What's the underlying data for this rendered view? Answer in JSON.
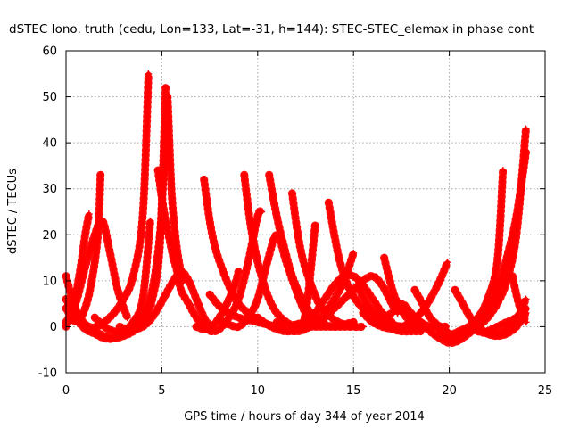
{
  "chart_data": {
    "type": "line",
    "title": "dSTEC Iono. truth (cedu, Lon=133, Lat=-31, h=144): STEC-STEC_elemax in phase cont",
    "xlabel": "GPS time / hours of day 344 of year 2014",
    "ylabel": "dSTEC  / TECUs",
    "xlim": [
      0,
      25
    ],
    "ylim": [
      -10,
      60
    ],
    "xticks": [
      0,
      5,
      10,
      15,
      20,
      25
    ],
    "yticks": [
      -10,
      0,
      10,
      20,
      30,
      40,
      50,
      60
    ],
    "grid": true,
    "legend": "none",
    "colors": {
      "series": "#ff0000"
    },
    "marker": "plus",
    "series": [
      {
        "x": [
          0.0,
          0.2,
          0.4,
          0.6,
          0.8,
          1.0,
          1.2
        ],
        "y": [
          0,
          2,
          5,
          9,
          14,
          20,
          24.5
        ]
      },
      {
        "x": [
          0.0,
          0.3,
          0.6,
          0.9,
          1.2,
          1.5,
          1.7,
          1.8
        ],
        "y": [
          4,
          2,
          1,
          3,
          7,
          14,
          22,
          33
        ]
      },
      {
        "x": [
          0.0,
          0.4,
          0.8,
          1.2,
          1.6,
          2.0,
          2.5,
          3.0,
          3.5,
          4.0,
          4.3
        ],
        "y": [
          11,
          5,
          1.5,
          0,
          0,
          1,
          3,
          6,
          11,
          24,
          55
        ]
      },
      {
        "x": [
          0.0,
          0.5,
          1.0,
          1.5,
          1.9,
          2.3,
          2.7,
          3.2
        ],
        "y": [
          1,
          5,
          13,
          20,
          23,
          16,
          8,
          2
        ]
      },
      {
        "x": [
          0.0,
          0.5,
          1.0,
          1.5,
          2.0,
          2.5,
          3.0,
          3.5,
          4.0,
          4.4
        ],
        "y": [
          6,
          2,
          -0.5,
          -1.5,
          -2.5,
          -2.5,
          -1,
          1,
          6,
          23
        ]
      },
      {
        "x": [
          0.5,
          1.0,
          1.5,
          2.0,
          2.5,
          3.0,
          3.5,
          4.0,
          4.5,
          4.9,
          5.2
        ],
        "y": [
          3,
          0,
          -1,
          -2,
          -2.5,
          -2,
          -1,
          1,
          6,
          18,
          52
        ]
      },
      {
        "x": [
          1.5,
          2.0,
          2.5,
          3.0,
          3.5,
          4.0,
          4.5,
          4.9,
          5.1,
          5.3
        ],
        "y": [
          2,
          0,
          -1,
          -1,
          0,
          2,
          8,
          20,
          34,
          45
        ]
      },
      {
        "x": [
          4.8,
          5.0,
          5.2,
          5.4,
          5.6,
          5.8,
          6.0,
          6.4,
          6.8,
          7.2,
          7.6,
          8.0,
          8.5,
          9.0,
          9.5,
          10.0,
          10.2
        ],
        "y": [
          34,
          28,
          23,
          19,
          15,
          12,
          8,
          5,
          2,
          0,
          -1,
          -0.5,
          2,
          6,
          14,
          24,
          25
        ]
      },
      {
        "x": [
          2.8,
          3.2,
          3.6,
          4.0,
          4.4,
          4.8,
          5.2,
          5.6,
          6.0,
          6.4,
          6.8,
          7.2,
          7.6
        ],
        "y": [
          0,
          -0.5,
          -0.5,
          0,
          1.5,
          4,
          7,
          10,
          12,
          10,
          6,
          2,
          -0.5
        ]
      },
      {
        "x": [
          5.3,
          5.5,
          5.7,
          5.9,
          6.1
        ],
        "y": [
          50,
          30,
          20,
          14,
          10
        ]
      },
      {
        "x": [
          7.2,
          7.5,
          7.8,
          8.2,
          8.6,
          9.0,
          9.5,
          10.0,
          10.5,
          11.0,
          11.5,
          12.0,
          12.5
        ],
        "y": [
          32,
          23,
          17,
          12,
          8,
          5,
          3,
          1.5,
          0.5,
          0,
          0,
          0.5,
          1
        ]
      },
      {
        "x": [
          9.3,
          9.6,
          9.9,
          10.2,
          10.6,
          11.0,
          11.5,
          12.0,
          12.5,
          13.0
        ],
        "y": [
          33,
          23,
          16,
          11,
          6,
          3,
          1,
          0,
          0.5,
          2
        ]
      },
      {
        "x": [
          6.8,
          7.2,
          7.6,
          8.0,
          8.4,
          8.8,
          9.0
        ],
        "y": [
          0,
          -0.5,
          0,
          2,
          5,
          9,
          12
        ]
      },
      {
        "x": [
          7.5,
          8.0,
          8.5,
          9.0,
          9.5,
          10.0,
          10.5,
          11.0,
          11.5,
          12.0,
          12.5,
          13.0,
          13.5,
          14.0,
          14.5,
          15.0
        ],
        "y": [
          7,
          4.5,
          3,
          2,
          1.5,
          1,
          0.5,
          0,
          0,
          0,
          0,
          0,
          0,
          0,
          0,
          0
        ]
      },
      {
        "x": [
          8.0,
          8.5,
          9.0,
          9.5,
          10.0,
          10.5,
          11.0,
          11.5,
          12.0,
          12.5,
          13.0
        ],
        "y": [
          1.5,
          0.5,
          0,
          2,
          6,
          14,
          20,
          14,
          8,
          3,
          1
        ]
      },
      {
        "x": [
          10.6,
          11.0,
          11.4,
          11.8,
          12.2,
          12.6,
          13.0,
          13.5,
          14.0,
          14.5,
          15.0
        ],
        "y": [
          33,
          24,
          17,
          11,
          7,
          4,
          2,
          0.5,
          0,
          0.5,
          1
        ]
      },
      {
        "x": [
          11.8,
          12.1,
          12.4,
          12.8,
          13.2,
          13.6,
          14.0,
          14.5,
          15.0,
          15.5
        ],
        "y": [
          29,
          20,
          14,
          9,
          5,
          3,
          1.5,
          0.5,
          0,
          0
        ]
      },
      {
        "x": [
          10.0,
          10.5,
          11.0,
          11.5,
          12.0,
          12.5,
          13.0
        ],
        "y": [
          2,
          0.5,
          -0.5,
          -1,
          -0.5,
          3,
          22
        ]
      },
      {
        "x": [
          11.0,
          11.5,
          12.0,
          12.5,
          13.0,
          13.5,
          14.0,
          14.5,
          15.0
        ],
        "y": [
          1,
          -0.5,
          -1,
          -0.5,
          1,
          3,
          6,
          10,
          16
        ]
      },
      {
        "x": [
          12.0,
          12.5,
          13.0,
          13.5,
          14.0,
          14.5,
          15.0,
          15.5,
          16.0,
          16.5,
          17.0
        ],
        "y": [
          0,
          1,
          3,
          6,
          9,
          11,
          11,
          9,
          6,
          3,
          1
        ]
      },
      {
        "x": [
          13.0,
          13.5,
          14.0,
          14.5,
          15.0,
          15.5,
          16.0,
          16.5,
          17.0,
          17.3
        ],
        "y": [
          1,
          2,
          4,
          6,
          8,
          10,
          11,
          9,
          5,
          3
        ]
      },
      {
        "x": [
          13.7,
          14.0,
          14.3,
          14.7,
          15.1,
          15.5,
          16.0,
          16.5,
          17.0,
          17.5,
          18.0,
          18.5
        ],
        "y": [
          27,
          20,
          14,
          9,
          6,
          4,
          2,
          1,
          0.5,
          0,
          0,
          0
        ]
      },
      {
        "x": [
          15.3,
          15.7,
          16.1,
          16.5,
          16.9,
          17.3,
          17.7
        ],
        "y": [
          8,
          5,
          3,
          1.5,
          0.5,
          0,
          0
        ]
      },
      {
        "x": [
          16.6,
          16.9,
          17.2,
          17.6,
          18.0,
          18.5,
          19.0
        ],
        "y": [
          15,
          10,
          6,
          3,
          1,
          0,
          0
        ]
      },
      {
        "x": [
          15.5,
          16.0,
          16.5,
          17.0,
          17.5,
          18.0,
          18.5
        ],
        "y": [
          3,
          1,
          0,
          -0.5,
          -1,
          -1,
          -1
        ]
      },
      {
        "x": [
          16.0,
          16.5,
          17.0,
          17.5,
          18.0,
          18.5,
          19.0,
          19.5,
          19.8
        ],
        "y": [
          1,
          2,
          3,
          5,
          3,
          1,
          0,
          0,
          0
        ]
      },
      {
        "x": [
          17.0,
          17.5,
          18.0,
          18.5,
          19.0,
          19.5,
          19.9
        ],
        "y": [
          0,
          0,
          1,
          3,
          6,
          10,
          14
        ]
      },
      {
        "x": [
          18.2,
          18.6,
          19.0,
          19.5,
          20.0,
          20.5
        ],
        "y": [
          8,
          5,
          2,
          0,
          -1.5,
          -2
        ]
      },
      {
        "x": [
          18.5,
          19.0,
          19.5,
          20.0,
          20.5,
          21.0,
          21.5,
          22.0,
          22.5,
          23.0,
          23.5,
          24.0
        ],
        "y": [
          1,
          -1,
          -2.5,
          -3.5,
          -3,
          -1.5,
          0,
          2,
          5,
          10,
          20,
          43
        ]
      },
      {
        "x": [
          19.5,
          20.0,
          20.5,
          21.0,
          21.5,
          22.0,
          22.5,
          23.0,
          23.5,
          24.0
        ],
        "y": [
          -1,
          -2,
          -2,
          -1,
          1,
          4,
          8,
          15,
          24,
          38
        ]
      },
      {
        "x": [
          20.0,
          20.5,
          21.0,
          21.5,
          22.0,
          22.5,
          22.8
        ],
        "y": [
          -2,
          -1,
          0,
          2,
          6,
          14,
          34
        ]
      },
      {
        "x": [
          20.3,
          20.7,
          21.1,
          21.5,
          22.0,
          22.5,
          23.0,
          23.5,
          24.0
        ],
        "y": [
          8,
          5,
          2,
          0,
          -1.5,
          -2,
          -1.5,
          0,
          3
        ]
      },
      {
        "x": [
          21.5,
          22.0,
          22.5,
          23.0,
          23.5,
          24.0
        ],
        "y": [
          -1,
          -1.5,
          -1.5,
          -0.5,
          1.5,
          6
        ]
      },
      {
        "x": [
          23.3,
          23.5,
          23.7,
          23.9,
          24.0
        ],
        "y": [
          11,
          7,
          4,
          2,
          1
        ]
      },
      {
        "x": [
          22.0,
          22.5,
          23.0,
          23.5,
          24.0
        ],
        "y": [
          -1,
          0,
          1,
          2,
          4
        ]
      }
    ]
  }
}
